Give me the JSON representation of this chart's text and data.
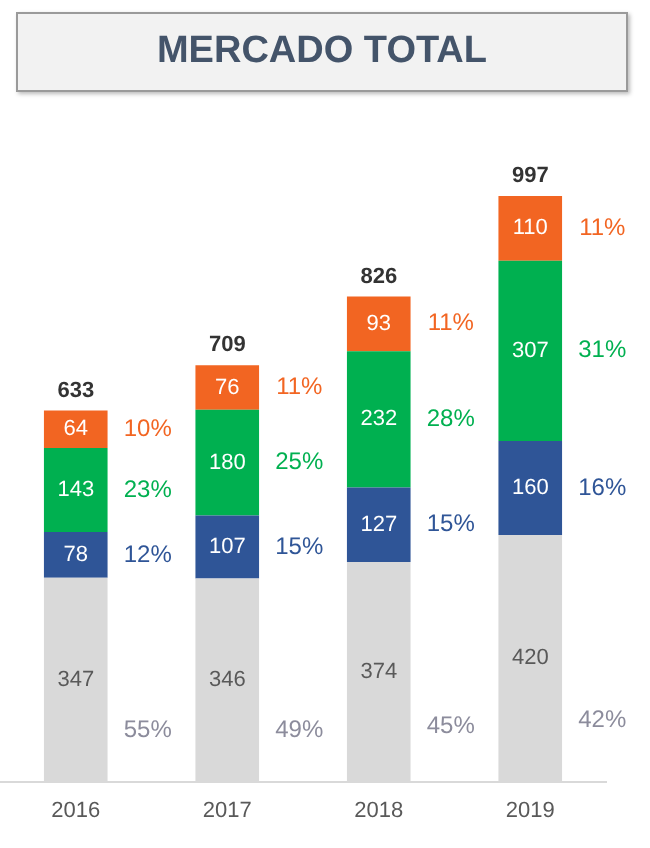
{
  "chart_data": {
    "type": "bar",
    "title": "MERCADO TOTAL",
    "stacked": true,
    "data_labels": true,
    "tick_labels": "x",
    "grid": false,
    "legend": false,
    "categories": [
      "2016",
      "2017",
      "2018",
      "2019"
    ],
    "series": [
      {
        "color": "#d9d9d9",
        "values": [
          347,
          346,
          374,
          420
        ]
      },
      {
        "color": "#2f5597",
        "values": [
          78,
          107,
          127,
          160
        ]
      },
      {
        "color": "#00b050",
        "values": [
          143,
          180,
          232,
          307
        ]
      },
      {
        "color": "#f26522",
        "values": [
          64,
          76,
          93,
          110
        ]
      }
    ],
    "totals": [
      "633",
      "709",
      "826",
      "997"
    ],
    "annotations": [
      "55%",
      "12%",
      "23%",
      "10%",
      "49%",
      "15%",
      "25%",
      "11%",
      "45%",
      "15%",
      "28%",
      "11%",
      "42%",
      "16%",
      "31%",
      "11%"
    ]
  }
}
